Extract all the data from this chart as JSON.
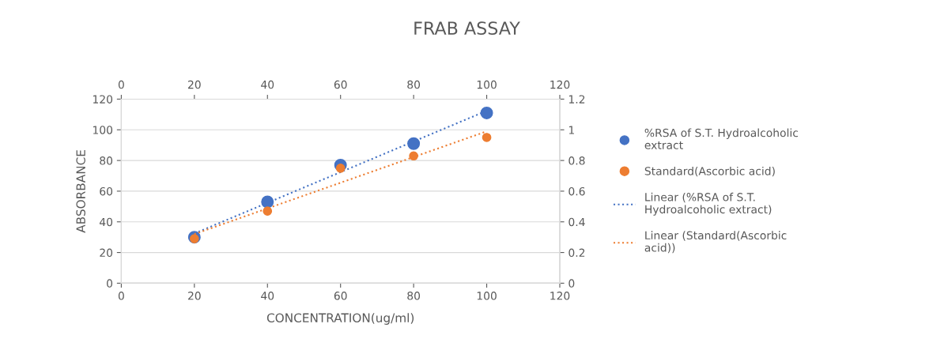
{
  "chart_data": {
    "type": "scatter",
    "title": "FRAB ASSAY",
    "xlabel": "CONCENTRATION(ug/ml)",
    "ylabel": "ABSORBANCE",
    "xlim": [
      0,
      120
    ],
    "xticks": [
      0,
      20,
      40,
      60,
      80,
      100,
      120
    ],
    "x2lim": [
      0,
      120
    ],
    "x2ticks": [
      0,
      20,
      40,
      60,
      80,
      100,
      120
    ],
    "ylim": [
      0,
      120
    ],
    "yticks": [
      0,
      20,
      40,
      60,
      80,
      100,
      120
    ],
    "y2lim": [
      0,
      1.2
    ],
    "y2ticks": [
      0,
      0.2,
      0.4,
      0.6,
      0.8,
      1,
      1.2
    ],
    "grid": "y",
    "legend": "right",
    "marker": "circle",
    "series": [
      {
        "name": "%RSA of S.T. Hydroalcoholic extract",
        "color": "#4472c4",
        "x": [
          20,
          40,
          60,
          80,
          100
        ],
        "values": [
          30,
          53,
          77,
          91,
          111
        ]
      },
      {
        "name": "Standard(Ascorbic acid)",
        "color": "#ed7d31",
        "axis": "y2",
        "x": [
          20,
          40,
          60,
          80,
          100
        ],
        "values": [
          0.29,
          0.47,
          0.75,
          0.83,
          0.95
        ]
      },
      {
        "name": "Linear (%RSA of S.T. Hydroalcoholic extract)",
        "type": "line",
        "line_style": "dotted",
        "marker": "none",
        "color": "#4472c4",
        "x": [
          20,
          100
        ],
        "values": [
          32.4,
          112.4
        ]
      },
      {
        "name": "Linear (Standard(Ascorbic acid))",
        "type": "line",
        "line_style": "dotted",
        "marker": "none",
        "axis": "y2",
        "color": "#ed7d31",
        "x": [
          20,
          100
        ],
        "values": [
          0.32,
          0.99
        ]
      }
    ]
  }
}
